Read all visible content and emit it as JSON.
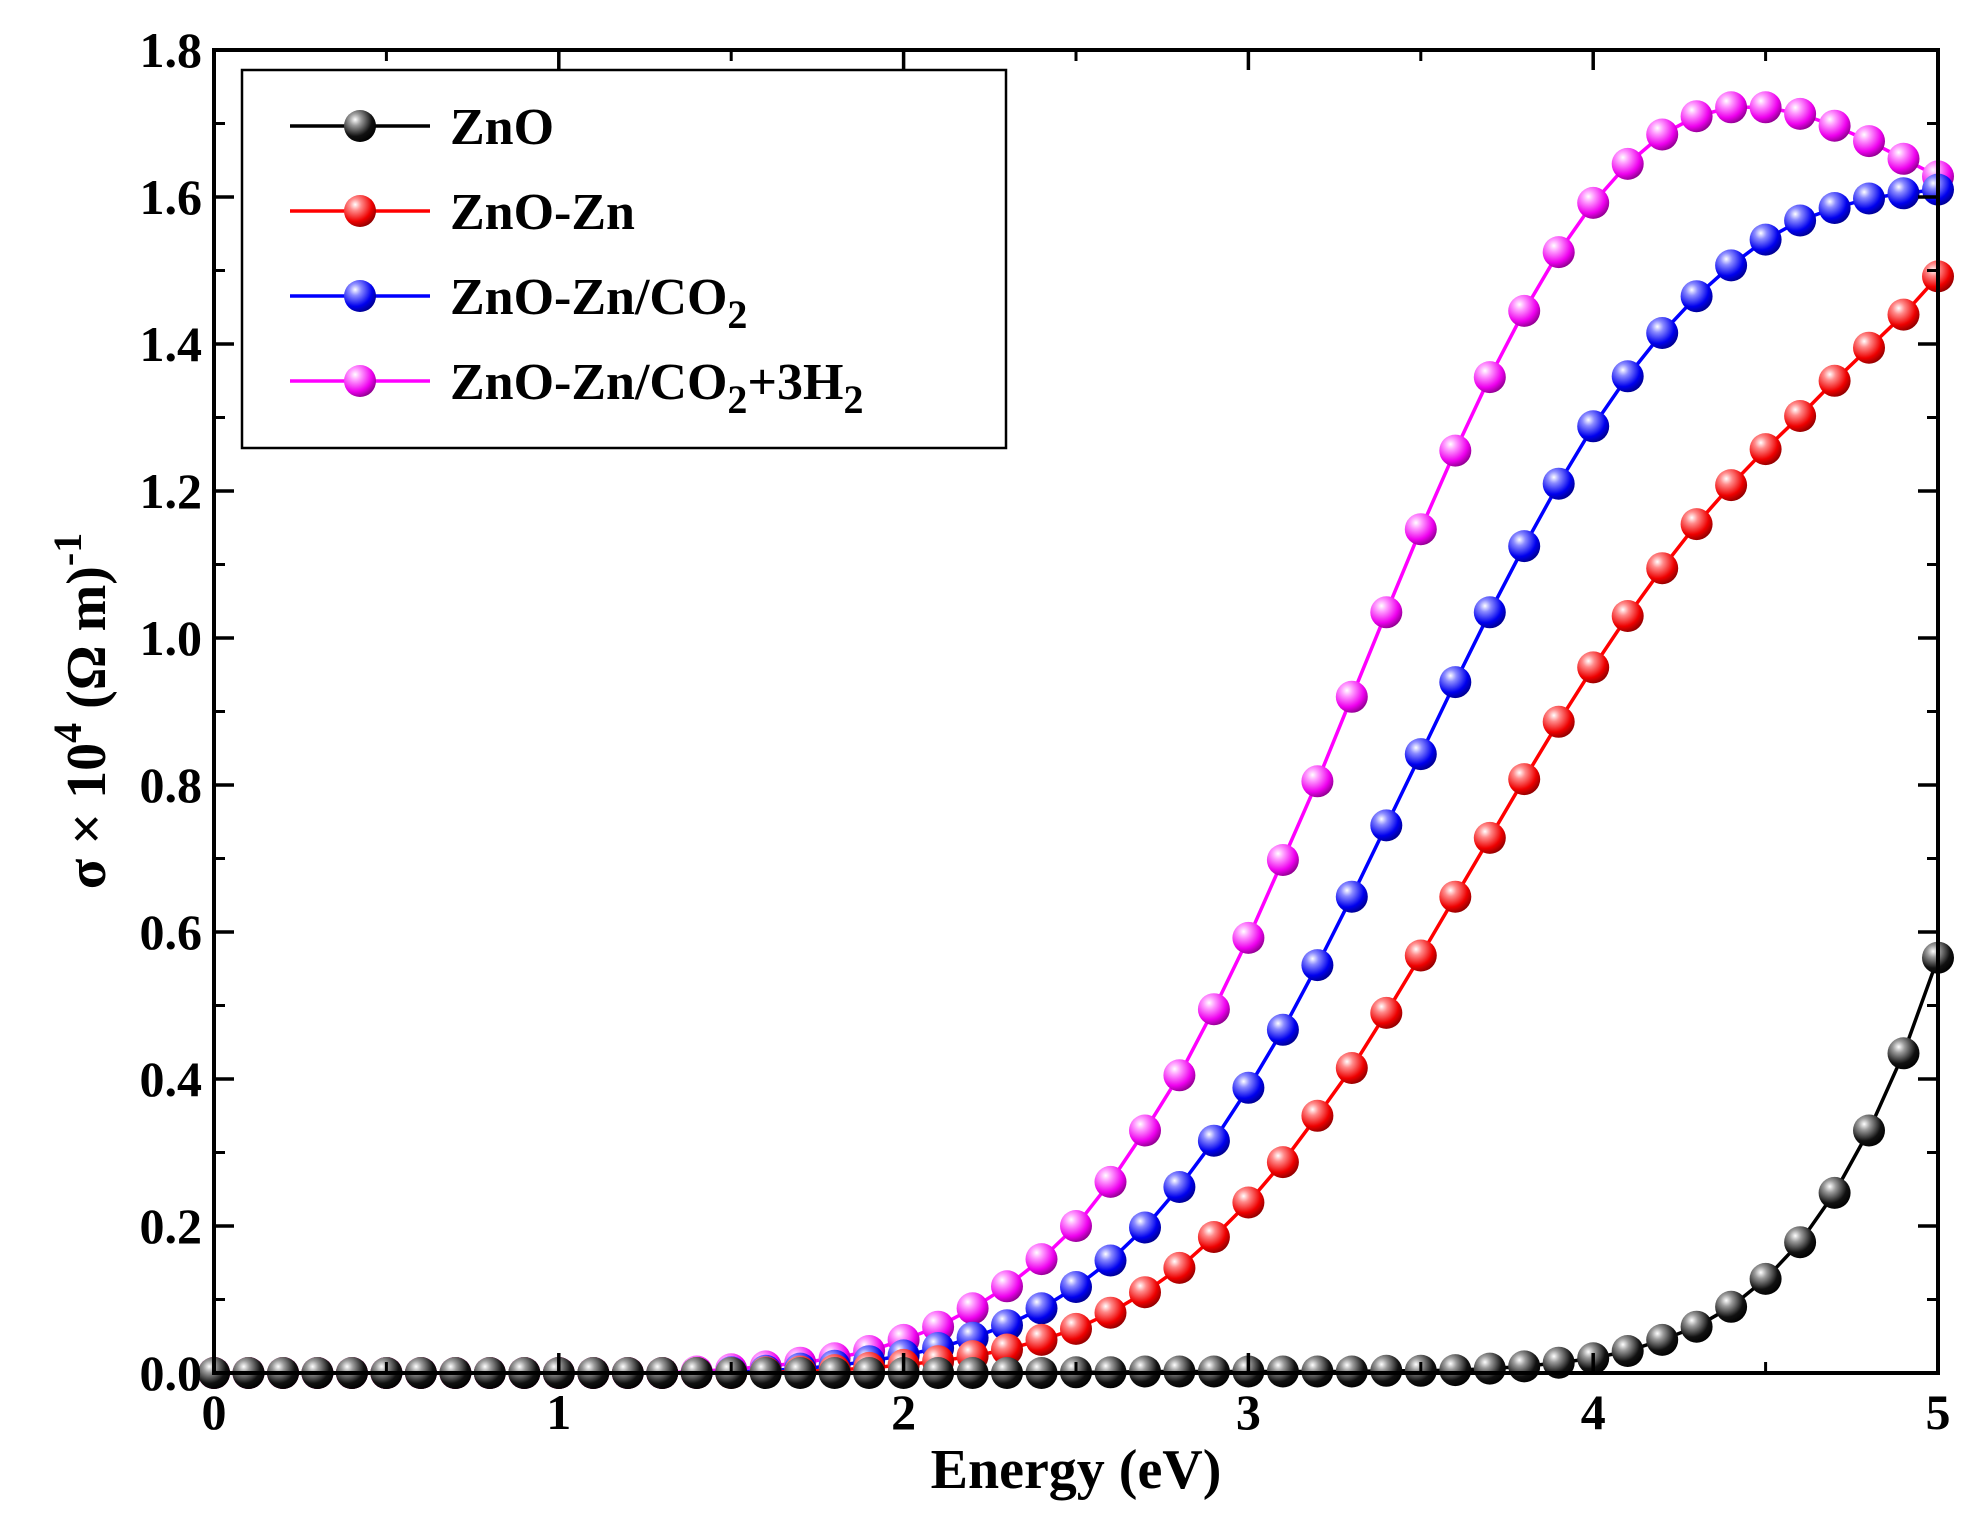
{
  "chart_data": {
    "type": "line",
    "title": "",
    "xlabel": "Energy (eV)",
    "ylabel": {
      "prefix": "σ × 10",
      "exponent": "4",
      "unit": " (Ω m)",
      "unit_exponent": "-1"
    },
    "xlim": [
      0,
      5
    ],
    "ylim": [
      0,
      1.8
    ],
    "xticks": [
      0,
      1,
      2,
      3,
      4,
      5
    ],
    "xtick_labels": [
      "0",
      "1",
      "2",
      "3",
      "4",
      "5"
    ],
    "yticks": [
      0,
      0.2,
      0.4,
      0.6,
      0.8,
      1.0,
      1.2,
      1.4,
      1.6,
      1.8
    ],
    "ytick_labels": [
      "0.0",
      "0.2",
      "0.4",
      "0.6",
      "0.8",
      "1.0",
      "1.2",
      "1.4",
      "1.6",
      "1.8"
    ],
    "grid": false,
    "legend_position": "top-left",
    "x": [
      0.0,
      0.1,
      0.2,
      0.3,
      0.4,
      0.5,
      0.6,
      0.7,
      0.8,
      0.9,
      1.0,
      1.1,
      1.2,
      1.3,
      1.4,
      1.5,
      1.6,
      1.7,
      1.8,
      1.9,
      2.0,
      2.1,
      2.2,
      2.3,
      2.4,
      2.5,
      2.6,
      2.7,
      2.8,
      2.9,
      3.0,
      3.1,
      3.2,
      3.3,
      3.4,
      3.5,
      3.6,
      3.7,
      3.8,
      3.9,
      4.0,
      4.1,
      4.2,
      4.3,
      4.4,
      4.5,
      4.6,
      4.7,
      4.8,
      4.9,
      5.0
    ],
    "series": [
      {
        "name": "ZnO-Zn/CO2+3H2",
        "legend": {
          "base": "ZnO-Zn/CO",
          "sub1": "2",
          "mid": "+3H",
          "sub2": "2"
        },
        "color": "#ff00ff",
        "values": [
          0,
          0,
          0,
          0,
          0,
          0,
          0,
          0,
          0,
          0,
          0,
          0,
          0,
          0,
          0.002,
          0.005,
          0.009,
          0.014,
          0.02,
          0.03,
          0.045,
          0.063,
          0.088,
          0.118,
          0.155,
          0.2,
          0.26,
          0.33,
          0.405,
          0.495,
          0.592,
          0.698,
          0.805,
          0.92,
          1.035,
          1.148,
          1.255,
          1.355,
          1.445,
          1.525,
          1.592,
          1.645,
          1.685,
          1.71,
          1.722,
          1.722,
          1.713,
          1.697,
          1.676,
          1.652,
          1.628
        ]
      },
      {
        "name": "ZnO-Zn/CO2",
        "legend": {
          "base": "ZnO-Zn/CO",
          "sub1": "2",
          "mid": "",
          "sub2": ""
        },
        "color": "#0000ff",
        "values": [
          0,
          0,
          0,
          0,
          0,
          0,
          0,
          0,
          0,
          0,
          0,
          0,
          0,
          0,
          0,
          0.001,
          0.003,
          0.006,
          0.01,
          0.016,
          0.024,
          0.034,
          0.048,
          0.065,
          0.088,
          0.117,
          0.153,
          0.198,
          0.253,
          0.316,
          0.388,
          0.467,
          0.555,
          0.648,
          0.745,
          0.842,
          0.94,
          1.035,
          1.125,
          1.21,
          1.288,
          1.356,
          1.415,
          1.465,
          1.507,
          1.542,
          1.568,
          1.585,
          1.598,
          1.605,
          1.61
        ]
      },
      {
        "name": "ZnO-Zn",
        "legend": {
          "base": "ZnO-Zn",
          "sub1": "",
          "mid": "",
          "sub2": ""
        },
        "color": "#ff0000",
        "values": [
          0,
          0,
          0,
          0,
          0,
          0,
          0,
          0,
          0,
          0,
          0,
          0,
          0,
          0,
          0,
          0,
          0.001,
          0.002,
          0.004,
          0.007,
          0.011,
          0.016,
          0.023,
          0.032,
          0.045,
          0.06,
          0.082,
          0.11,
          0.143,
          0.185,
          0.232,
          0.287,
          0.35,
          0.415,
          0.49,
          0.568,
          0.648,
          0.728,
          0.808,
          0.886,
          0.96,
          1.03,
          1.095,
          1.155,
          1.208,
          1.257,
          1.302,
          1.35,
          1.395,
          1.44,
          1.492
        ]
      },
      {
        "name": "ZnO",
        "legend": {
          "base": "ZnO",
          "sub1": "",
          "mid": "",
          "sub2": ""
        },
        "color": "#000000",
        "values": [
          0,
          0,
          0,
          0,
          0,
          0,
          0,
          0,
          0,
          0,
          0,
          0,
          0,
          0,
          0,
          0,
          0,
          0,
          0,
          0,
          0,
          0,
          0,
          0,
          0,
          0.001,
          0.001,
          0.002,
          0.002,
          0.002,
          0.002,
          0.002,
          0.002,
          0.002,
          0.003,
          0.003,
          0.004,
          0.006,
          0.009,
          0.014,
          0.02,
          0.03,
          0.045,
          0.063,
          0.09,
          0.128,
          0.178,
          0.245,
          0.33,
          0.435,
          0.565
        ]
      }
    ],
    "legend_order": [
      "ZnO",
      "ZnO-Zn",
      "ZnO-Zn/CO2",
      "ZnO-Zn/CO2+3H2"
    ]
  }
}
